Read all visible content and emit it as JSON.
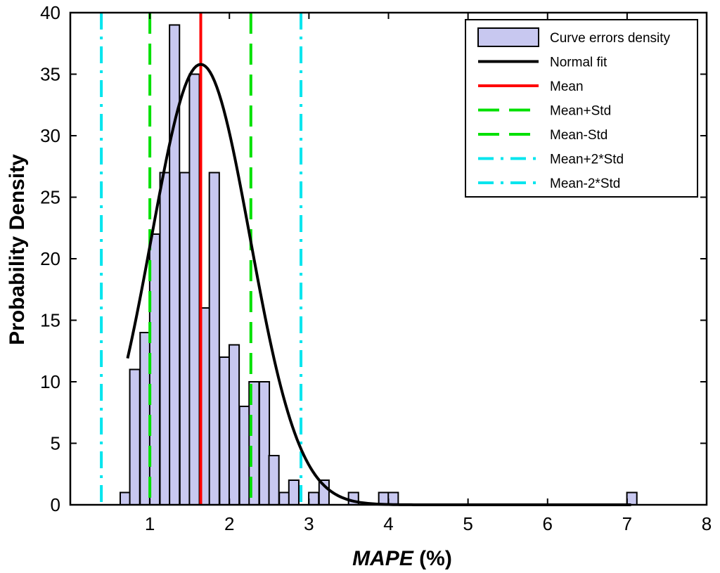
{
  "chart_data": {
    "type": "bar",
    "title": "",
    "xlabel_main": "MAPE",
    "xlabel_unit": " (%)",
    "ylabel": "Probability Density",
    "xlim": [
      0,
      8
    ],
    "ylim": [
      0,
      40
    ],
    "x_ticks": [
      1,
      2,
      3,
      4,
      5,
      6,
      7,
      8
    ],
    "y_ticks": [
      0,
      5,
      10,
      15,
      20,
      25,
      30,
      35,
      40
    ],
    "bin_width": 0.125,
    "bins": [
      {
        "x": 0.69,
        "value": 1
      },
      {
        "x": 0.81,
        "value": 11
      },
      {
        "x": 0.94,
        "value": 14
      },
      {
        "x": 1.06,
        "value": 22
      },
      {
        "x": 1.19,
        "value": 27
      },
      {
        "x": 1.31,
        "value": 39
      },
      {
        "x": 1.44,
        "value": 27
      },
      {
        "x": 1.56,
        "value": 35
      },
      {
        "x": 1.69,
        "value": 16
      },
      {
        "x": 1.81,
        "value": 27
      },
      {
        "x": 1.94,
        "value": 12
      },
      {
        "x": 2.06,
        "value": 13
      },
      {
        "x": 2.19,
        "value": 8
      },
      {
        "x": 2.31,
        "value": 10
      },
      {
        "x": 2.44,
        "value": 10
      },
      {
        "x": 2.56,
        "value": 4
      },
      {
        "x": 2.69,
        "value": 1
      },
      {
        "x": 2.81,
        "value": 2
      },
      {
        "x": 2.94,
        "value": 0
      },
      {
        "x": 3.06,
        "value": 1
      },
      {
        "x": 3.19,
        "value": 2
      },
      {
        "x": 3.31,
        "value": 0
      },
      {
        "x": 3.44,
        "value": 0
      },
      {
        "x": 3.56,
        "value": 1
      },
      {
        "x": 3.94,
        "value": 1
      },
      {
        "x": 4.06,
        "value": 1
      },
      {
        "x": 7.06,
        "value": 1
      }
    ],
    "normal_fit": {
      "mean": 1.64,
      "std": 0.62,
      "scale": 35.8,
      "x_start": 0.72,
      "x_end": 7.05
    },
    "vlines": {
      "mean": 1.64,
      "mean_plus_std": 2.27,
      "mean_minus_std": 1.0,
      "mean_plus_2std": 2.9,
      "mean_minus_2std": 0.39
    },
    "colors": {
      "bar_fill": "#c8c8f0",
      "bar_edge": "#000000",
      "normal_fit": "#000000",
      "mean": "#ff0000",
      "std": "#00e000",
      "two_std": "#00e5ee"
    },
    "legend": {
      "position": "top-right",
      "entries": [
        {
          "label": "Curve errors density",
          "kind": "patch"
        },
        {
          "label": "Normal fit",
          "kind": "solid-black"
        },
        {
          "label": "Mean",
          "kind": "solid-red"
        },
        {
          "label": "Mean+Std",
          "kind": "dashed-green"
        },
        {
          "label": "Mean-Std",
          "kind": "dashed-green"
        },
        {
          "label": "Mean+2*Std",
          "kind": "dashdot-cyan"
        },
        {
          "label": "Mean-2*Std",
          "kind": "dashdot-cyan"
        }
      ]
    }
  }
}
